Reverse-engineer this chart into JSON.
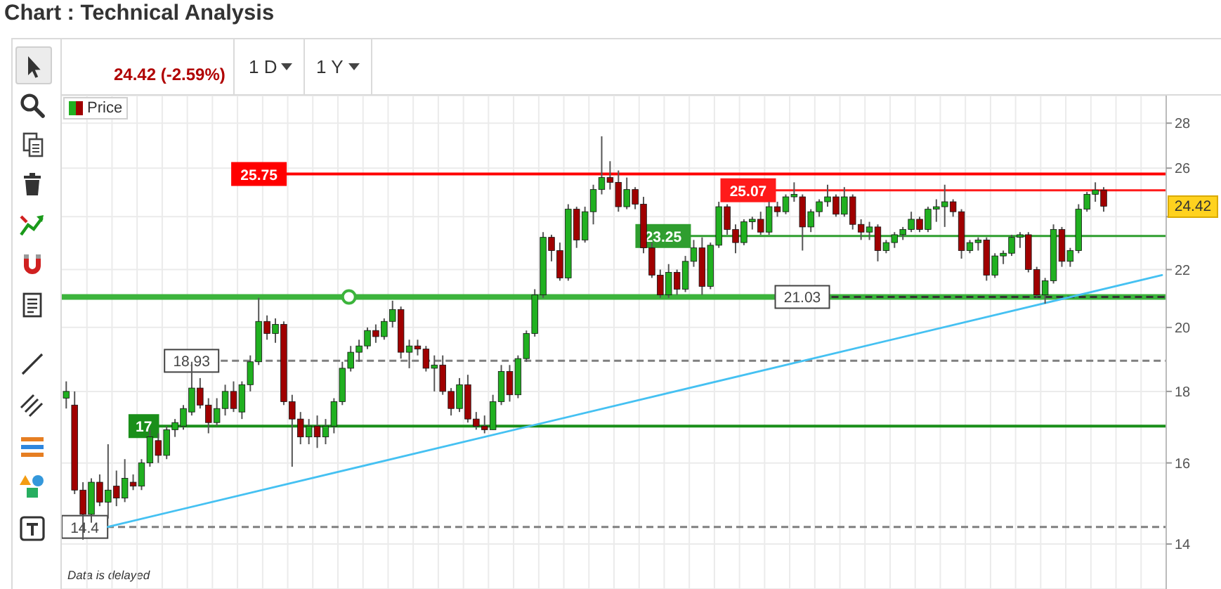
{
  "chart_data": {
    "type": "candlestick",
    "title": "Chart : Technical Analysis",
    "categories": [
      null,
      null,
      null,
      null,
      null,
      null,
      null,
      null,
      null,
      null,
      null,
      null,
      null,
      null,
      null,
      null,
      null,
      null,
      null,
      null,
      null,
      null,
      null,
      null,
      null,
      null,
      null,
      null,
      null,
      null,
      null,
      null,
      null,
      null,
      null,
      null,
      null,
      null,
      null,
      null,
      null,
      null,
      null,
      null,
      null,
      null,
      null,
      null,
      null,
      null,
      null,
      null,
      null,
      null,
      null,
      null,
      null,
      null,
      null,
      null,
      null,
      null,
      null,
      null,
      null,
      null,
      null,
      null,
      null,
      null,
      null,
      null,
      null,
      null,
      null,
      null,
      null,
      null,
      null,
      null,
      null,
      null,
      null,
      null,
      null,
      null,
      null,
      null,
      null,
      null,
      null,
      null,
      null,
      null,
      null,
      null,
      null,
      null,
      null,
      null,
      null,
      null,
      null,
      null,
      null,
      null,
      null,
      null,
      null,
      null,
      null,
      null,
      null,
      null,
      null,
      null,
      null,
      null,
      null,
      null,
      null,
      null,
      null,
      null,
      null,
      null,
      null,
      null,
      null,
      null,
      null,
      null
    ],
    "series": [
      {
        "name": "Price",
        "ohlc": [
          [
            17.8,
            18.3,
            17.5,
            18.0
          ],
          [
            17.6,
            18.0,
            15.2,
            15.3
          ],
          [
            15.3,
            15.5,
            14.1,
            14.7
          ],
          [
            14.7,
            15.6,
            14.5,
            15.5
          ],
          [
            15.5,
            15.7,
            14.9,
            15.0
          ],
          [
            15.0,
            16.5,
            14.6,
            15.3
          ],
          [
            15.4,
            15.8,
            14.9,
            15.1
          ],
          [
            15.1,
            16.1,
            15.0,
            15.6
          ],
          [
            15.5,
            15.7,
            15.3,
            15.4
          ],
          [
            15.4,
            16.1,
            15.3,
            16.0
          ],
          [
            16.0,
            16.9,
            15.9,
            16.7
          ],
          [
            16.6,
            16.8,
            16.0,
            16.2
          ],
          [
            16.2,
            17.0,
            16.1,
            16.9
          ],
          [
            16.9,
            17.2,
            16.7,
            17.1
          ],
          [
            17.0,
            17.6,
            16.9,
            17.5
          ],
          [
            17.4,
            18.9,
            17.3,
            18.1
          ],
          [
            18.1,
            18.4,
            17.5,
            17.6
          ],
          [
            17.6,
            17.8,
            16.8,
            17.1
          ],
          [
            17.1,
            17.8,
            17.0,
            17.5
          ],
          [
            17.5,
            18.2,
            17.3,
            18.0
          ],
          [
            18.0,
            18.3,
            17.4,
            17.5
          ],
          [
            17.4,
            18.3,
            17.2,
            18.2
          ],
          [
            18.2,
            19.1,
            18.0,
            18.9
          ],
          [
            18.9,
            21.0,
            18.8,
            20.2
          ],
          [
            20.2,
            20.4,
            19.6,
            19.8
          ],
          [
            19.8,
            20.3,
            19.5,
            20.1
          ],
          [
            20.1,
            20.2,
            17.6,
            17.7
          ],
          [
            17.7,
            17.9,
            15.9,
            17.2
          ],
          [
            17.2,
            17.4,
            16.5,
            16.7
          ],
          [
            16.7,
            17.2,
            16.5,
            17.0
          ],
          [
            17.0,
            17.3,
            16.4,
            16.7
          ],
          [
            16.7,
            17.2,
            16.5,
            17.0
          ],
          [
            17.0,
            17.8,
            16.8,
            17.7
          ],
          [
            17.7,
            18.9,
            17.6,
            18.7
          ],
          [
            18.7,
            19.4,
            18.6,
            19.2
          ],
          [
            19.2,
            19.6,
            18.9,
            19.4
          ],
          [
            19.4,
            20.0,
            19.3,
            19.9
          ],
          [
            19.9,
            20.1,
            19.5,
            19.7
          ],
          [
            19.7,
            20.3,
            19.6,
            20.2
          ],
          [
            20.2,
            20.9,
            20.0,
            20.6
          ],
          [
            20.6,
            20.7,
            19.0,
            19.2
          ],
          [
            19.2,
            19.6,
            18.7,
            19.4
          ],
          [
            19.4,
            19.6,
            19.1,
            19.3
          ],
          [
            19.3,
            19.4,
            18.6,
            18.7
          ],
          [
            18.7,
            19.1,
            18.0,
            18.8
          ],
          [
            18.8,
            19.1,
            17.9,
            18.0
          ],
          [
            18.0,
            18.1,
            17.3,
            17.5
          ],
          [
            17.5,
            18.4,
            17.4,
            18.2
          ],
          [
            18.2,
            18.5,
            17.1,
            17.2
          ],
          [
            17.2,
            17.4,
            16.9,
            17.0
          ],
          [
            17.0,
            17.3,
            16.8,
            16.9
          ],
          [
            16.9,
            17.9,
            16.9,
            17.7
          ],
          [
            17.7,
            18.8,
            17.6,
            18.6
          ],
          [
            18.6,
            18.8,
            17.7,
            17.9
          ],
          [
            17.9,
            19.1,
            17.8,
            19.0
          ],
          [
            19.0,
            19.9,
            18.9,
            19.8
          ],
          [
            19.8,
            21.3,
            19.7,
            21.1
          ],
          [
            21.1,
            23.4,
            21.0,
            23.2
          ],
          [
            23.2,
            23.3,
            22.3,
            22.7
          ],
          [
            22.7,
            23.0,
            21.6,
            21.7
          ],
          [
            21.7,
            24.5,
            21.6,
            24.3
          ],
          [
            24.3,
            24.4,
            22.8,
            23.1
          ],
          [
            23.1,
            24.4,
            23.0,
            24.2
          ],
          [
            24.2,
            25.3,
            23.7,
            25.1
          ],
          [
            25.1,
            27.4,
            24.9,
            25.6
          ],
          [
            25.6,
            26.3,
            25.1,
            25.4
          ],
          [
            25.4,
            25.9,
            24.2,
            24.4
          ],
          [
            24.4,
            25.6,
            24.3,
            25.1
          ],
          [
            25.1,
            25.2,
            24.3,
            24.5
          ],
          [
            24.5,
            24.8,
            22.6,
            22.8
          ],
          [
            22.8,
            23.0,
            21.7,
            21.8
          ],
          [
            21.8,
            22.0,
            21.0,
            21.1
          ],
          [
            21.1,
            22.2,
            21.0,
            21.9
          ],
          [
            21.9,
            22.0,
            21.1,
            21.3
          ],
          [
            21.3,
            22.5,
            21.2,
            22.3
          ],
          [
            22.3,
            23.1,
            22.1,
            22.8
          ],
          [
            22.8,
            23.2,
            21.1,
            21.4
          ],
          [
            21.4,
            23.0,
            21.3,
            22.9
          ],
          [
            22.9,
            24.6,
            22.8,
            24.4
          ],
          [
            24.4,
            24.5,
            23.3,
            23.5
          ],
          [
            23.5,
            23.7,
            22.6,
            23.0
          ],
          [
            23.0,
            23.9,
            22.9,
            23.8
          ],
          [
            23.8,
            24.0,
            23.5,
            23.9
          ],
          [
            23.9,
            24.2,
            23.3,
            23.4
          ],
          [
            23.4,
            24.6,
            23.3,
            24.4
          ],
          [
            24.4,
            24.6,
            24.0,
            24.2
          ],
          [
            24.2,
            24.9,
            24.1,
            24.8
          ],
          [
            24.8,
            25.4,
            24.6,
            24.9
          ],
          [
            24.8,
            24.9,
            22.7,
            23.6
          ],
          [
            23.6,
            24.3,
            23.4,
            24.2
          ],
          [
            24.2,
            24.7,
            24.0,
            24.6
          ],
          [
            24.6,
            25.3,
            24.4,
            24.8
          ],
          [
            24.8,
            24.9,
            24.0,
            24.1
          ],
          [
            24.1,
            25.2,
            24.0,
            24.8
          ],
          [
            24.8,
            24.9,
            23.5,
            23.7
          ],
          [
            23.7,
            23.9,
            23.1,
            23.4
          ],
          [
            23.4,
            23.8,
            23.1,
            23.6
          ],
          [
            23.6,
            23.7,
            22.3,
            22.7
          ],
          [
            22.7,
            23.1,
            22.6,
            23.0
          ],
          [
            23.0,
            23.4,
            22.8,
            23.3
          ],
          [
            23.3,
            23.6,
            23.1,
            23.5
          ],
          [
            23.5,
            24.2,
            23.4,
            23.9
          ],
          [
            23.9,
            24.0,
            23.4,
            23.5
          ],
          [
            23.5,
            24.4,
            23.4,
            24.3
          ],
          [
            24.3,
            24.7,
            23.8,
            24.4
          ],
          [
            24.4,
            25.3,
            23.6,
            24.6
          ],
          [
            24.6,
            24.7,
            24.0,
            24.2
          ],
          [
            24.2,
            24.3,
            22.4,
            22.7
          ],
          [
            22.7,
            23.1,
            22.6,
            23.0
          ],
          [
            23.0,
            23.2,
            22.7,
            23.1
          ],
          [
            23.1,
            23.2,
            21.6,
            21.8
          ],
          [
            21.8,
            22.6,
            21.7,
            22.5
          ],
          [
            22.5,
            22.7,
            22.2,
            22.6
          ],
          [
            22.6,
            23.3,
            22.5,
            23.2
          ],
          [
            23.2,
            23.4,
            22.8,
            23.3
          ],
          [
            23.3,
            23.4,
            21.9,
            22.0
          ],
          [
            22.0,
            22.1,
            21.0,
            21.1
          ],
          [
            21.1,
            21.7,
            20.8,
            21.6
          ],
          [
            21.6,
            23.7,
            21.5,
            23.5
          ],
          [
            23.5,
            23.6,
            22.1,
            22.3
          ],
          [
            22.3,
            22.8,
            22.1,
            22.7
          ],
          [
            22.7,
            24.5,
            22.6,
            24.3
          ],
          [
            24.3,
            25.0,
            24.2,
            24.9
          ],
          [
            24.9,
            25.4,
            24.6,
            25.07
          ],
          [
            25.07,
            25.2,
            24.2,
            24.42
          ],
          null,
          null,
          null,
          null,
          null,
          null,
          null
        ],
        "colors": [
          "#20b020",
          "#a00000",
          "#a00000",
          "#20b020",
          "#a00000",
          "#20b020",
          "#a00000",
          "#20b020",
          "#a00000",
          "#20b020",
          "#20b020",
          "#a00000",
          "#20b020",
          "#20b020",
          "#20b020",
          "#20b020",
          "#a00000",
          "#a00000",
          "#20b020",
          "#20b020",
          "#a00000",
          "#20b020",
          "#20b020",
          "#20b020",
          "#a00000",
          "#20b020",
          "#a00000",
          "#a00000",
          "#a00000",
          "#20b020",
          "#a00000",
          "#20b020",
          "#20b020",
          "#20b020",
          "#20b020",
          "#20b020",
          "#20b020",
          "#a00000",
          "#20b020",
          "#20b020",
          "#a00000",
          "#20b020",
          "#a00000",
          "#a00000",
          "#20b020",
          "#a00000",
          "#a00000",
          "#20b020",
          "#a00000",
          "#a00000",
          "#a00000",
          "#20b020",
          "#20b020",
          "#a00000",
          "#20b020",
          "#20b020",
          "#20b020",
          "#20b020",
          "#a00000",
          "#a00000",
          "#20b020",
          "#a00000",
          "#20b020",
          "#20b020",
          "#20b020",
          "#a00000",
          "#a00000",
          "#20b020",
          "#a00000",
          "#a00000",
          "#a00000",
          "#a00000",
          "#20b020",
          "#a00000",
          "#20b020",
          "#20b020",
          "#a00000",
          "#20b020",
          "#20b020",
          "#a00000",
          "#a00000",
          "#20b020",
          "#20b020",
          "#a00000",
          "#20b020",
          "#a00000",
          "#20b020",
          "#20b020",
          "#a00000",
          "#20b020",
          "#20b020",
          "#20b020",
          "#a00000",
          "#20b020",
          "#a00000",
          "#a00000",
          "#20b020",
          "#a00000",
          "#20b020",
          "#20b020",
          "#20b020",
          "#20b020",
          "#a00000",
          "#20b020",
          "#20b020",
          "#20b020",
          "#a00000",
          "#a00000",
          "#20b020",
          "#20b020",
          "#a00000",
          "#20b020",
          "#20b020",
          "#20b020",
          "#20b020",
          "#a00000",
          "#a00000",
          "#20b020",
          "#20b020",
          "#a00000",
          "#20b020",
          "#20b020",
          "#20b020",
          "#20b020",
          "#a00000",
          null,
          null,
          null,
          null,
          null,
          null,
          null
        ]
      },
      {
        "type": "line",
        "color": "#45c1f2",
        "values": [
          null,
          null,
          null,
          null,
          null,
          14.4,
          null,
          null,
          null,
          null,
          null,
          null,
          null,
          null,
          null,
          null,
          null,
          null,
          null,
          null,
          null,
          null,
          null,
          null,
          null,
          null,
          null,
          null,
          null,
          null,
          null,
          null,
          null,
          null,
          null,
          null,
          null,
          null,
          null,
          null,
          null,
          null,
          null,
          null,
          null,
          null,
          null,
          null,
          null,
          null,
          null,
          null,
          null,
          null,
          null,
          null,
          null,
          null,
          null,
          null,
          null,
          null,
          null,
          null,
          null,
          null,
          null,
          null,
          null,
          null,
          null,
          null,
          null,
          null,
          null,
          null,
          null,
          null,
          null,
          null,
          null,
          null,
          null,
          null,
          null,
          null,
          null,
          null,
          null,
          null,
          null,
          null,
          null,
          null,
          null,
          null,
          null,
          null,
          null,
          null,
          null,
          null,
          null,
          null,
          null,
          null,
          null,
          null,
          null,
          null,
          null,
          null,
          null,
          null,
          null,
          null,
          null,
          null,
          null,
          null,
          null,
          null,
          null,
          null,
          null,
          null,
          null,
          null,
          null,
          null,
          null,
          21.8
        ]
      }
    ],
    "ylim": [
      13.0,
      29.3
    ],
    "yticks": [
      14,
      16,
      18,
      20,
      22,
      {
        "value": 24,
        "label": null
      },
      26,
      28
    ],
    "log": true,
    "grid": true,
    "legend": "top left",
    "tick_labels": "y",
    "ref_lines": [
      {
        "axis": "y",
        "value": 25.75,
        "label": "25.75",
        "color": "#ff0000"
      },
      {
        "axis": "y",
        "value": 25.07,
        "label": "25.07",
        "color": "#ff1a1a"
      },
      {
        "axis": "y",
        "value": 23.25,
        "label": "23.25",
        "color": "#2f9e2f"
      },
      {
        "axis": "y",
        "value": 21.03,
        "color": "#3cb43c"
      },
      {
        "axis": "y",
        "value": 21.03,
        "label": "21.03",
        "color": "#333333",
        "line_style": "dashed"
      },
      {
        "axis": "y",
        "value": 18.93,
        "label": "18.93",
        "color": "#808080",
        "line_style": "dashed"
      },
      {
        "axis": "y",
        "value": 17,
        "label": "17",
        "color": "#1a8f1a"
      },
      {
        "axis": "y",
        "value": 14.4,
        "label": "14.4",
        "color": "#808080",
        "line_style": "dashed"
      }
    ],
    "annotations": [
      "24.42 (-2.59%)",
      "1 D",
      "1 Y",
      {
        "text": "24.42",
        "y": 24.42
      },
      "Data is delayed"
    ]
  }
}
